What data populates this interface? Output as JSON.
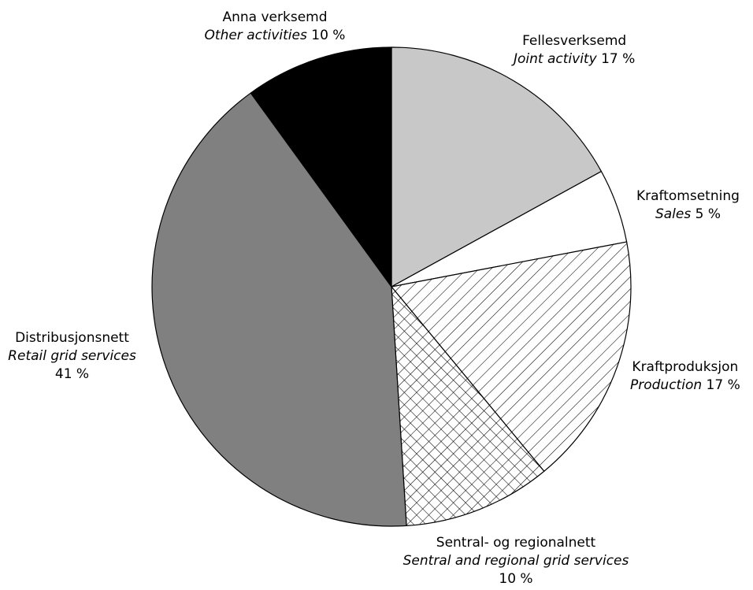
{
  "chart_data": {
    "type": "pie",
    "title": "",
    "start_angle_deg": 0,
    "direction": "clockwise",
    "slices": [
      {
        "label_no": "Fellesverksemd",
        "label_en": "Joint activity",
        "value": 17,
        "value_text": "17 %",
        "fill": "#c8c8c8",
        "pattern": "none"
      },
      {
        "label_no": "Kraftomsetning",
        "label_en": "Sales",
        "value": 5,
        "value_text": "5 %",
        "fill": "#ffffff",
        "pattern": "none"
      },
      {
        "label_no": "Kraftproduksjon",
        "label_en": "Production",
        "value": 17,
        "value_text": "17 %",
        "fill": "#ffffff",
        "pattern": "diagonal-hatch"
      },
      {
        "label_no": "Sentral- og regionalnett",
        "label_en": "Sentral and regional grid services",
        "value": 10,
        "value_text": "10 %",
        "fill": "#ffffff",
        "pattern": "crosshatch"
      },
      {
        "label_no": "Distribusjonsnett",
        "label_en": "Retail grid services",
        "value": 41,
        "value_text": "41 %",
        "fill": "#808080",
        "pattern": "none"
      },
      {
        "label_no": "Anna verksemd",
        "label_en": "Other activities",
        "value": 10,
        "value_text": "10 %",
        "fill": "#000000",
        "pattern": "none"
      }
    ]
  }
}
